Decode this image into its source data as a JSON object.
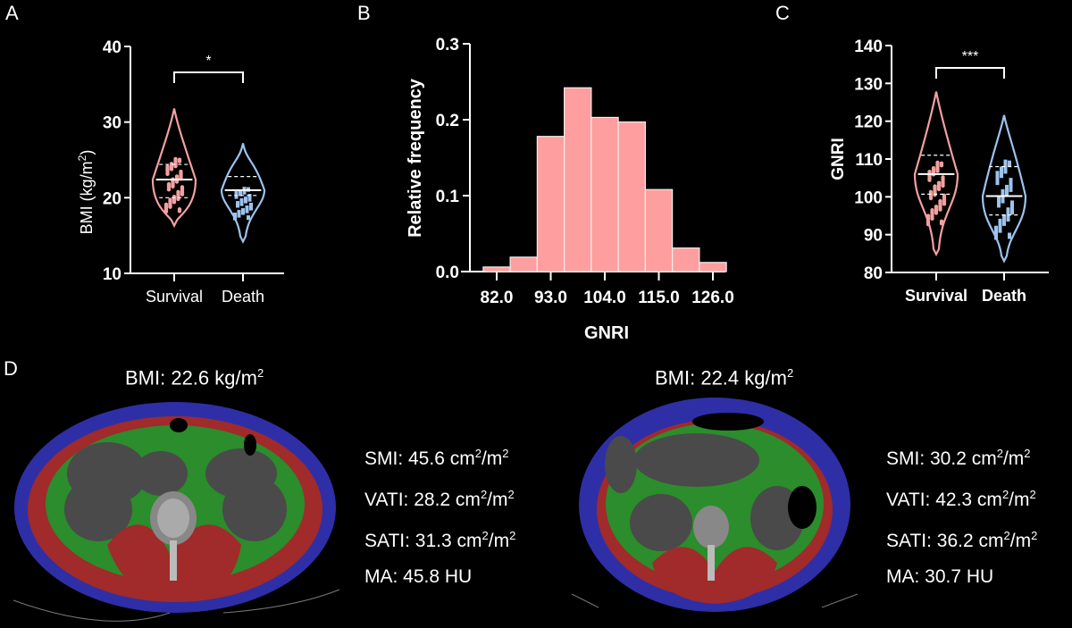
{
  "panels": {
    "A": {
      "letter": "A"
    },
    "B": {
      "letter": "B"
    },
    "C": {
      "letter": "C"
    },
    "D": {
      "letter": "D"
    }
  },
  "chart_data": [
    {
      "id": "A",
      "type": "violin",
      "ylabel": "BMI (kg/m2)",
      "ylabel_main": "BMI (kg/m",
      "ylabel_sup": "2",
      "ylabel_end": ")",
      "ylim": [
        10,
        40
      ],
      "yticks": [
        "10",
        "20",
        "30",
        "40"
      ],
      "categories": [
        "Survival",
        "Death"
      ],
      "significance": "*",
      "series": [
        {
          "name": "Survival",
          "color": "#f4a0a0",
          "median": 22.4,
          "q1": 20.0,
          "q3": 24.4,
          "min": 16.3,
          "max": 31.8
        },
        {
          "name": "Death",
          "color": "#9cc3ee",
          "median": 21.0,
          "q1": 20.3,
          "q3": 22.8,
          "min": 14.2,
          "max": 27.2
        }
      ]
    },
    {
      "id": "B",
      "type": "bar",
      "title": "",
      "xlabel": "GNRI",
      "ylabel": "Relative frequency",
      "ylim": [
        0,
        0.3
      ],
      "yticks": [
        "0.0",
        "0.1",
        "0.2",
        "0.3"
      ],
      "xticks": [
        "82.0",
        "93.0",
        "104.0",
        "115.0",
        "126.0"
      ],
      "bin_centers": [
        82.0,
        87.5,
        93.0,
        98.5,
        104.0,
        109.5,
        115.0,
        120.5,
        126.0
      ],
      "values": [
        0.006,
        0.019,
        0.178,
        0.242,
        0.203,
        0.197,
        0.108,
        0.031,
        0.012
      ],
      "color": "#ff9e9e"
    },
    {
      "id": "C",
      "type": "violin",
      "ylabel": "GNRI",
      "ylim": [
        80,
        140
      ],
      "yticks": [
        "80",
        "90",
        "100",
        "110",
        "120",
        "130",
        "140"
      ],
      "categories": [
        "Survival",
        "Death"
      ],
      "significance": "***",
      "series": [
        {
          "name": "Survival",
          "color": "#f4a0a0",
          "median": 106.0,
          "q1": 100.7,
          "q3": 111.0,
          "min": 84.8,
          "max": 127.8
        },
        {
          "name": "Death",
          "color": "#9cc3ee",
          "median": 100.2,
          "q1": 95.2,
          "q3": 108.0,
          "min": 83.0,
          "max": 121.6
        }
      ]
    }
  ],
  "ct_images": [
    {
      "bmi_label": "BMI: 22.6 kg/m",
      "metrics": [
        {
          "label": "SMI: 45.6 cm",
          "unit_mid": "/m",
          "sup": "2",
          "sup2": "2"
        },
        {
          "label": "VATI: 28.2 cm",
          "unit_mid": "/m",
          "sup": "2",
          "sup2": "2"
        },
        {
          "label": "SATI: 31.3 cm",
          "unit_mid": "/m",
          "sup": "2",
          "sup2": "2"
        },
        {
          "label": "MA: 45.8 HU"
        }
      ]
    },
    {
      "bmi_label": "BMI: 22.4 kg/m",
      "metrics": [
        {
          "label": "SMI: 30.2 cm",
          "unit_mid": "/m",
          "sup": "2",
          "sup2": "2"
        },
        {
          "label": "VATI: 42.3 cm",
          "unit_mid": "/m",
          "sup": "2",
          "sup2": "2"
        },
        {
          "label": "SATI: 36.2 cm",
          "unit_mid": "/m",
          "sup": "2",
          "sup2": "2"
        },
        {
          "label": "MA: 30.7 HU"
        }
      ]
    }
  ],
  "colors": {
    "fat_subcutaneous": "#2e2fa6",
    "muscle": "#a12a2a",
    "fat_visceral": "#2b8d2b",
    "organ": "#4a4a4a"
  }
}
